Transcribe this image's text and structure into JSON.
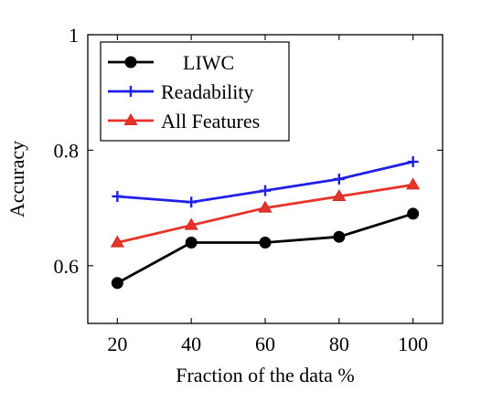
{
  "chart_data": {
    "type": "line",
    "title": "",
    "xlabel": "Fraction of the data %",
    "ylabel": "Accuracy",
    "x": [
      20,
      40,
      60,
      80,
      100
    ],
    "xlim": [
      12,
      108
    ],
    "ylim": [
      0.5,
      1.0
    ],
    "xticks": [
      20,
      40,
      60,
      80,
      100
    ],
    "yticks": [
      0.6,
      0.8,
      1.0
    ],
    "ytick_labels": [
      "0.6",
      "0.8",
      "1"
    ],
    "grid": false,
    "legend_position": "top-left",
    "series": [
      {
        "name": "LIWC",
        "color": "#000000",
        "marker": "circle",
        "values": [
          0.57,
          0.64,
          0.64,
          0.65,
          0.69
        ]
      },
      {
        "name": "Readability",
        "color": "#1f1fe6",
        "marker": "plus",
        "values": [
          0.72,
          0.71,
          0.73,
          0.75,
          0.78
        ]
      },
      {
        "name": "All Features",
        "color": "#e8332a",
        "marker": "triangle",
        "values": [
          0.64,
          0.67,
          0.7,
          0.72,
          0.74
        ]
      }
    ]
  }
}
